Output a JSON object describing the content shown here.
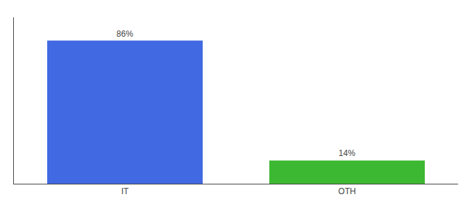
{
  "chart_data": {
    "type": "bar",
    "categories": [
      "IT",
      "OTH"
    ],
    "values": [
      86,
      14
    ],
    "value_labels": [
      "86%",
      "14%"
    ],
    "colors": [
      "#4169e1",
      "#3cb832"
    ],
    "ylim": [
      0,
      100
    ],
    "yticks": [],
    "grid": false,
    "data_labels": true,
    "tick_labels": "x"
  }
}
